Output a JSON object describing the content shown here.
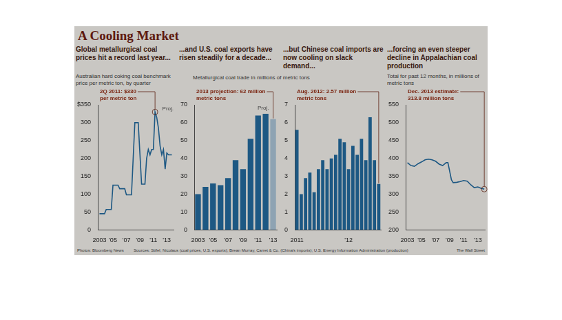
{
  "title": "A Cooling Market",
  "group_subtitle": "Metallurgical coal trade in millions of metric tons",
  "footer": {
    "photos": "Photos: Bloomberg News",
    "sources": "Sources: Stifel, Nicolaus (coal prices, U.S. exports); Brean Murray, Carret & Co. (China's imports); U.S. Energy Information Administration (production)",
    "credit": "The Wall Street"
  },
  "chart_data": [
    {
      "type": "line",
      "title": "Global metallurgical coal prices hit a record last year...",
      "subtitle": "Australian hard coking coal benchmark price per metric ton, by quarter",
      "annotation": {
        "lines": [
          "2Q 2011: $330",
          "per metric ton"
        ],
        "x": 2011.25,
        "y": 330
      },
      "proj_label": "Proj.",
      "x": [
        2003.0,
        2003.75,
        2004.0,
        2004.75,
        2005.0,
        2005.75,
        2006.0,
        2006.75,
        2007.0,
        2007.75,
        2008.25,
        2008.75,
        2009.25,
        2009.75,
        2010.0,
        2010.25,
        2010.5,
        2010.75,
        2011.0,
        2011.25,
        2011.5,
        2011.75,
        2012.0,
        2012.25,
        2012.5,
        2012.75,
        2013.0,
        2013.25,
        2013.5,
        2013.75
      ],
      "values": [
        45,
        45,
        57,
        57,
        125,
        125,
        115,
        115,
        98,
        98,
        300,
        300,
        128,
        128,
        200,
        225,
        210,
        225,
        225,
        330,
        315,
        285,
        235,
        210,
        225,
        170,
        215,
        210,
        210,
        210
      ],
      "color": "#1d5883",
      "xlim": [
        2002.75,
        2014
      ],
      "xticks": [
        2003,
        {
          "value": 2005,
          "label": "'05"
        },
        {
          "value": 2007,
          "label": "'07"
        },
        {
          "value": 2009,
          "label": "'09"
        },
        {
          "value": 2011,
          "label": "'11"
        },
        {
          "value": 2013,
          "label": "'13"
        }
      ],
      "ylim": [
        0,
        350
      ],
      "yticks": [
        0,
        50,
        100,
        150,
        200,
        250,
        300,
        {
          "value": 350,
          "label": "$350"
        }
      ],
      "grid": false
    },
    {
      "type": "bar",
      "title": "...and U.S. coal exports have risen steadily for a decade...",
      "annotation": {
        "lines": [
          "2013 projection: 62 million",
          "metric tons"
        ]
      },
      "proj_label": "Proj.",
      "categories": [
        "2003",
        null,
        "'05",
        null,
        "'07",
        null,
        "'09",
        null,
        "'11",
        null,
        "'13"
      ],
      "values": [
        20,
        24,
        26,
        25,
        29,
        39,
        34,
        51,
        64,
        65,
        62
      ],
      "colors": [
        "#1d5883",
        "#1d5883",
        "#1d5883",
        "#1d5883",
        "#1d5883",
        "#1d5883",
        "#1d5883",
        "#1d5883",
        "#1d5883",
        "#1d5883",
        "#8ea3b3"
      ],
      "ylim": [
        0,
        70
      ],
      "yticks": [
        0,
        10,
        20,
        30,
        40,
        50,
        60,
        70
      ],
      "grid": false
    },
    {
      "type": "bar",
      "title": "...but Chinese coal imports are now cooling on slack demand...",
      "annotation": {
        "lines": [
          "Aug. 2012: 2.57 million",
          "metric tons"
        ]
      },
      "categories": [
        "2011",
        null,
        null,
        null,
        null,
        null,
        null,
        null,
        null,
        null,
        null,
        null,
        "'12",
        null,
        null,
        null,
        null,
        null,
        null,
        null
      ],
      "values": [
        5.6,
        2.0,
        2.9,
        3.2,
        2.1,
        3.4,
        3.9,
        3.4,
        4.0,
        4.2,
        5.1,
        4.9,
        3.4,
        4.7,
        4.2,
        5.1,
        3.9,
        6.3,
        3.9,
        2.57
      ],
      "color": "#1d5883",
      "ylim": [
        0,
        7
      ],
      "yticks": [
        0,
        1,
        2,
        3,
        4,
        5,
        6,
        7
      ],
      "grid": false
    },
    {
      "type": "line",
      "title": "...forcing an even steeper decline in Appalachian coal production",
      "subtitle": "Total for past 12 months, in millions of metric tons",
      "annotation": {
        "lines": [
          "Dec. 2013 estimate:",
          "313.8 million tons"
        ],
        "x": 2013.917,
        "y": 313.8
      },
      "x": [
        2003.0,
        2003.5,
        2004.0,
        2004.5,
        2005.0,
        2005.5,
        2006.0,
        2006.5,
        2007.0,
        2007.5,
        2008.0,
        2008.5,
        2008.75,
        2009.25,
        2009.5,
        2010.0,
        2010.5,
        2011.0,
        2011.5,
        2012.0,
        2012.5,
        2013.0,
        2013.5,
        2013.917
      ],
      "values": [
        388,
        380,
        378,
        385,
        390,
        396,
        398,
        396,
        392,
        384,
        380,
        388,
        388,
        340,
        332,
        333,
        335,
        338,
        336,
        326,
        318,
        320,
        316,
        313.8
      ],
      "color": "#1d5883",
      "xlim": [
        2002.75,
        2014
      ],
      "xticks": [
        2003,
        {
          "value": 2005,
          "label": "'05"
        },
        {
          "value": 2007,
          "label": "'07"
        },
        {
          "value": 2009,
          "label": "'09"
        },
        {
          "value": 2011,
          "label": "'11"
        },
        {
          "value": 2013,
          "label": "'13"
        }
      ],
      "ylim": [
        200,
        550
      ],
      "yticks": [
        200,
        250,
        300,
        350,
        400,
        450,
        500,
        550
      ],
      "grid": false
    }
  ]
}
